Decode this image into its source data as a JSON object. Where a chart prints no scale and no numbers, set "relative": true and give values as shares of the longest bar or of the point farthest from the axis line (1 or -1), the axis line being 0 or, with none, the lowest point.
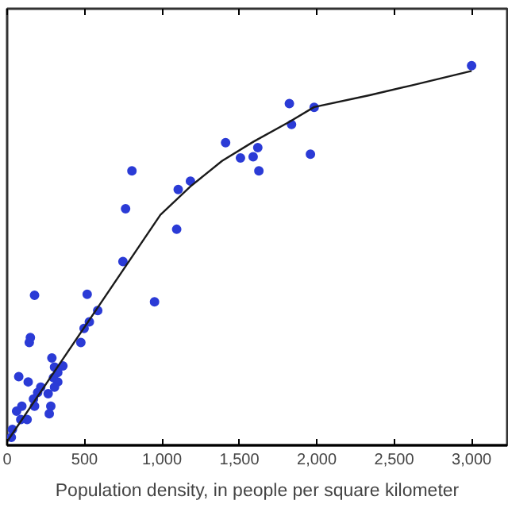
{
  "chart_data": {
    "type": "scatter",
    "relative": true,
    "xlabel": "Population density, in people per square kilometer",
    "xlim": [
      0,
      3230
    ],
    "xticks": [
      0,
      500,
      {
        "value": 1000,
        "label": "1,000"
      },
      {
        "value": 1500,
        "label": "1,500"
      },
      {
        "value": 2000,
        "label": "2,000"
      },
      {
        "value": 2500,
        "label": "2,500"
      },
      {
        "value": 3000,
        "label": "3,000"
      }
    ],
    "grid": false,
    "marker": "circle",
    "series": [
      {
        "color": "#2b3bd6",
        "x": [
          3000,
          1823,
          1983,
          1837,
          1959,
          1411,
          1507,
          1589,
          1619,
          1626,
          1184,
          1105,
          1095,
          806,
          765,
          748,
          952,
          177,
          517,
          585,
          531,
          497,
          476,
          150,
          143,
          289,
          360,
          306,
          327,
          299,
          327,
          75,
          136,
          217,
          306,
          197,
          265,
          170,
          282,
          177,
          95,
          272,
          61,
          129,
          88,
          34,
          27
        ],
        "values": [
          1.0,
          0.9,
          0.89,
          0.845,
          0.767,
          0.797,
          0.757,
          0.76,
          0.784,
          0.723,
          0.696,
          0.674,
          0.569,
          0.723,
          0.623,
          0.484,
          0.378,
          0.395,
          0.398,
          0.355,
          0.325,
          0.308,
          0.271,
          0.284,
          0.271,
          0.23,
          0.209,
          0.206,
          0.192,
          0.178,
          0.167,
          0.181,
          0.167,
          0.153,
          0.153,
          0.139,
          0.136,
          0.122,
          0.103,
          0.103,
          0.103,
          0.083,
          0.09,
          0.068,
          0.068,
          0.042,
          0.021
        ]
      },
      {
        "type": "line",
        "color": "#1a1a1a",
        "line_style": "solid",
        "marker": "none",
        "x": [
          0,
          990,
          1184,
          1388,
          1592,
          1823,
          1983,
          2340,
          2612,
          3000
        ],
        "values": [
          0.01,
          0.607,
          0.682,
          0.749,
          0.8,
          0.852,
          0.891,
          0.922,
          0.948,
          0.986
        ]
      }
    ]
  }
}
